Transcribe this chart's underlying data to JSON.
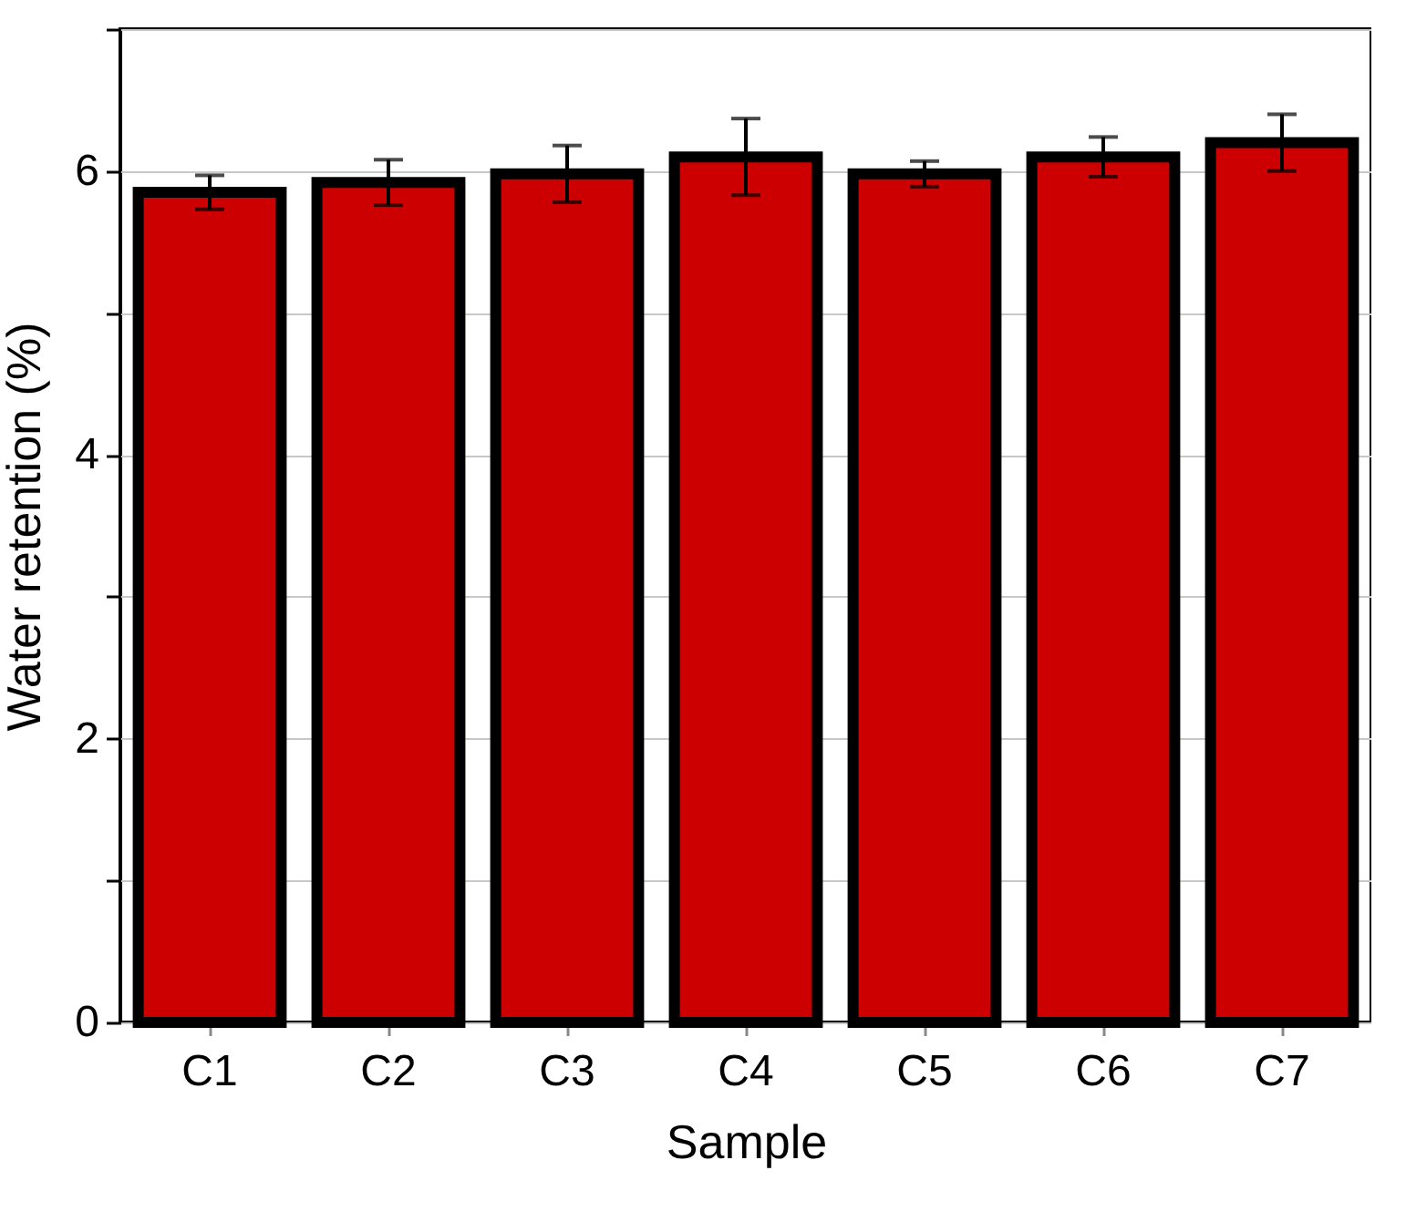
{
  "chart_data": {
    "type": "bar",
    "xlabel": "Sample",
    "ylabel": "Water retention (%)",
    "categories": [
      "C1",
      "C2",
      "C3",
      "C4",
      "C5",
      "C6",
      "C7"
    ],
    "values": [
      5.85,
      5.92,
      5.98,
      6.1,
      5.98,
      6.1,
      6.2
    ],
    "errors": [
      0.12,
      0.16,
      0.2,
      0.27,
      0.09,
      0.14,
      0.2
    ],
    "color": "#cc0000",
    "ylim": [
      0,
      7
    ],
    "yticks": [
      0,
      {
        "value": 1,
        "label": null
      },
      2,
      {
        "value": 3,
        "label": null
      },
      4,
      {
        "value": 5,
        "label": null
      },
      6,
      {
        "value": 7,
        "label": null
      }
    ],
    "grid": "y"
  }
}
